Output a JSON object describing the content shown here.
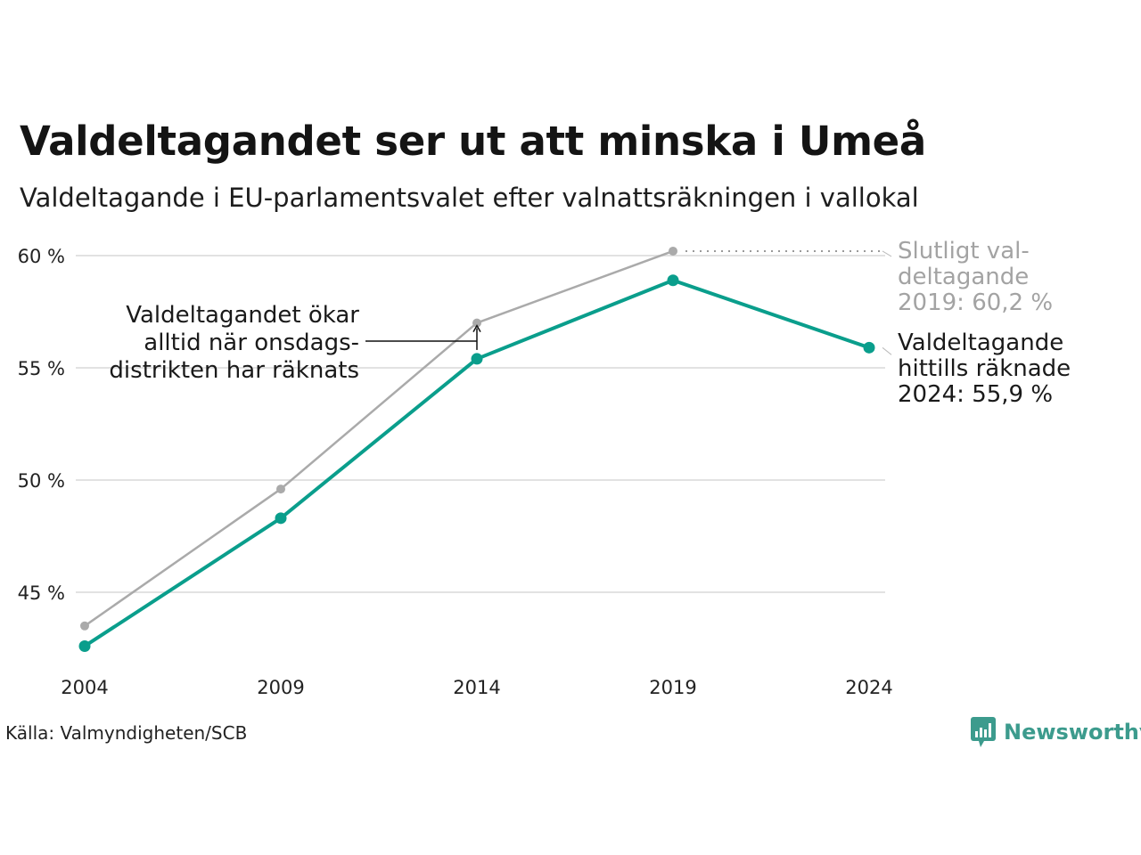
{
  "title": "Valdeltagandet ser ut att minska i Umeå",
  "subtitle": "Valdeltagande i EU-parlamentsvalet efter valnattsräkningen i vallokal",
  "source": "Källa: Valmyndigheten/SCB",
  "brand": "Newsworthy",
  "annotations": {
    "middle": [
      "Valdeltagandet ökar",
      "alltid när onsdags-",
      "distrikten har räknats"
    ],
    "final": [
      "Slutligt val-",
      "deltagande",
      "2019: 60,2 %"
    ],
    "current": [
      "Valdeltagande",
      "hittills räknade",
      "2024: 55,9 %"
    ]
  },
  "colors": {
    "election_night": "#0a9e8c",
    "final": "#aaaaaa",
    "grid": "#e2e2e2",
    "brand": "#3c9b8d"
  },
  "chart_data": {
    "type": "line",
    "x": [
      "2004",
      "2009",
      "2014",
      "2019",
      "2024"
    ],
    "y_ticks": [
      "45 %",
      "50 %",
      "55 %",
      "60 %"
    ],
    "y_tick_values": [
      45,
      50,
      55,
      60
    ],
    "ylim": [
      42.5,
      60.5
    ],
    "series": [
      {
        "name": "Slutligt valdeltagande",
        "color": "#aaaaaa",
        "values": [
          43.5,
          49.6,
          57.0,
          60.2,
          null
        ]
      },
      {
        "name": "Valdeltagande efter valnattsräkningen",
        "color": "#0a9e8c",
        "values": [
          42.6,
          48.3,
          55.4,
          58.9,
          55.9
        ]
      }
    ],
    "grid": true,
    "legend": "none"
  }
}
